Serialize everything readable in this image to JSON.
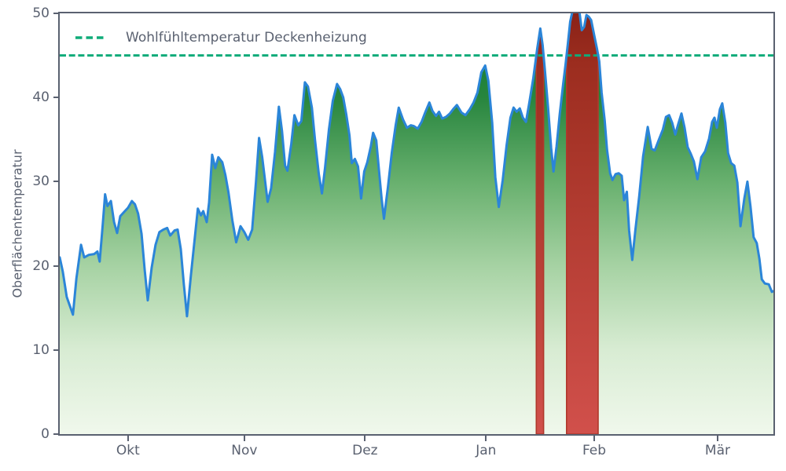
{
  "chart_data": {
    "type": "area",
    "title": "",
    "xlabel": "",
    "ylabel": "Oberflächentemperatur",
    "ylim": [
      0,
      50
    ],
    "xlim_days": [
      0,
      184
    ],
    "grid": false,
    "y_ticks": [
      0,
      10,
      20,
      30,
      40,
      50
    ],
    "x_ticks": [
      {
        "label": "Okt",
        "day": 17.6
      },
      {
        "label": "Nov",
        "day": 47.6
      },
      {
        "label": "Dez",
        "day": 78.7
      },
      {
        "label": "Jan",
        "day": 109.9
      },
      {
        "label": "Feb",
        "day": 137.8
      },
      {
        "label": "Mär",
        "day": 169.6
      }
    ],
    "legend": {
      "position": "upper left",
      "entries": [
        "Wohlfühltemperatur Deckenheizung"
      ]
    },
    "threshold_line": {
      "value": 45,
      "label": "Wohlfühltemperatur Deckenheizung",
      "color": "#0fab79",
      "style": "dashed"
    },
    "colors": {
      "line": "#2b85d8",
      "area_gradient_top": "#0d7a30",
      "area_gradient_bottom": "#f0f8ec",
      "exceed_gradient_top": "#8a2217",
      "exceed_gradient_bottom": "#d1504b",
      "exceed_edge": "#b0392c",
      "axis": "#5a6170"
    },
    "exceedance_fill": {
      "condition": "temperature > 45",
      "description": "area under curve shaded dark red where curve exceeds comfort threshold"
    },
    "series": [
      {
        "name": "Oberflächentemperatur",
        "points": [
          [
            0,
            21
          ],
          [
            0.8,
            19.3
          ],
          [
            1.8,
            16.3
          ],
          [
            3.4,
            14.2
          ],
          [
            4.3,
            18.5
          ],
          [
            5.5,
            22.5
          ],
          [
            6.3,
            21
          ],
          [
            7.5,
            21.3
          ],
          [
            8.9,
            21.4
          ],
          [
            9.7,
            21.7
          ],
          [
            10.3,
            20.5
          ],
          [
            11.1,
            25
          ],
          [
            11.7,
            28.5
          ],
          [
            12.3,
            27.1
          ],
          [
            13.2,
            27.7
          ],
          [
            14,
            25.2
          ],
          [
            14.8,
            23.9
          ],
          [
            15.6,
            25.9
          ],
          [
            16.6,
            26.4
          ],
          [
            17.6,
            26.9
          ],
          [
            18.6,
            27.7
          ],
          [
            19.4,
            27.3
          ],
          [
            20.2,
            26.2
          ],
          [
            21.1,
            23.8
          ],
          [
            21.9,
            19.5
          ],
          [
            22.7,
            15.9
          ],
          [
            23.7,
            19.8
          ],
          [
            24.7,
            22.5
          ],
          [
            25.7,
            24
          ],
          [
            26.7,
            24.3
          ],
          [
            27.7,
            24.5
          ],
          [
            28.5,
            23.6
          ],
          [
            29.6,
            24.2
          ],
          [
            30.4,
            24.3
          ],
          [
            31.2,
            22
          ],
          [
            32,
            17.8
          ],
          [
            32.8,
            14
          ],
          [
            33.8,
            18.8
          ],
          [
            34.8,
            23.2
          ],
          [
            35.6,
            26.8
          ],
          [
            36.4,
            26
          ],
          [
            37,
            26.5
          ],
          [
            37.9,
            25.2
          ],
          [
            38.5,
            27.5
          ],
          [
            39.3,
            33.2
          ],
          [
            40.1,
            31.6
          ],
          [
            40.9,
            32.9
          ],
          [
            41.9,
            32.3
          ],
          [
            42.7,
            30.8
          ],
          [
            43.5,
            28.7
          ],
          [
            44.5,
            25.4
          ],
          [
            45.5,
            22.8
          ],
          [
            46.6,
            24.7
          ],
          [
            47.6,
            24
          ],
          [
            48.6,
            23.1
          ],
          [
            49.6,
            24.3
          ],
          [
            50.6,
            30
          ],
          [
            51.4,
            35.2
          ],
          [
            52.2,
            32.9
          ],
          [
            53,
            29.9
          ],
          [
            53.6,
            27.6
          ],
          [
            54.5,
            29.2
          ],
          [
            55.5,
            33.5
          ],
          [
            56.5,
            38.9
          ],
          [
            57.3,
            36
          ],
          [
            58.1,
            31.9
          ],
          [
            58.7,
            31.3
          ],
          [
            59.7,
            34.5
          ],
          [
            60.5,
            37.9
          ],
          [
            61.5,
            36.7
          ],
          [
            62.3,
            37.2
          ],
          [
            63.2,
            41.8
          ],
          [
            64,
            41.3
          ],
          [
            65,
            38.8
          ],
          [
            65.8,
            35
          ],
          [
            66.8,
            30.9
          ],
          [
            67.6,
            28.6
          ],
          [
            68.4,
            31.6
          ],
          [
            69.4,
            36.2
          ],
          [
            70.4,
            39.6
          ],
          [
            71.5,
            41.6
          ],
          [
            72.3,
            41
          ],
          [
            73.1,
            40
          ],
          [
            73.9,
            37.9
          ],
          [
            74.7,
            35.5
          ],
          [
            75.3,
            32.2
          ],
          [
            76.1,
            32.7
          ],
          [
            76.9,
            31.8
          ],
          [
            77.7,
            28
          ],
          [
            78.5,
            31.2
          ],
          [
            79.3,
            32.3
          ],
          [
            80.2,
            34.2
          ],
          [
            80.8,
            35.8
          ],
          [
            81.6,
            34.9
          ],
          [
            82.4,
            30.9
          ],
          [
            83,
            27.9
          ],
          [
            83.6,
            25.6
          ],
          [
            84.6,
            29.3
          ],
          [
            85.6,
            33.4
          ],
          [
            86.6,
            36.7
          ],
          [
            87.4,
            38.8
          ],
          [
            88.5,
            37.4
          ],
          [
            89.5,
            36.4
          ],
          [
            90.5,
            36.7
          ],
          [
            91.3,
            36.6
          ],
          [
            92.3,
            36.3
          ],
          [
            93.3,
            37.1
          ],
          [
            94.3,
            38.3
          ],
          [
            95.3,
            39.4
          ],
          [
            96.1,
            38.4
          ],
          [
            97,
            37.8
          ],
          [
            97.8,
            38.3
          ],
          [
            98.6,
            37.5
          ],
          [
            99.6,
            37.7
          ],
          [
            100.6,
            38.1
          ],
          [
            101.6,
            38.7
          ],
          [
            102.4,
            39.1
          ],
          [
            103.6,
            38.2
          ],
          [
            104.6,
            37.9
          ],
          [
            105.7,
            38.6
          ],
          [
            106.7,
            39.4
          ],
          [
            107.7,
            40.6
          ],
          [
            108.7,
            43
          ],
          [
            109.7,
            43.8
          ],
          [
            110.5,
            42
          ],
          [
            111.5,
            37
          ],
          [
            112.3,
            30.5
          ],
          [
            113.2,
            27
          ],
          [
            114.2,
            30.2
          ],
          [
            115.2,
            34.3
          ],
          [
            116.2,
            37.6
          ],
          [
            117,
            38.8
          ],
          [
            117.8,
            38.3
          ],
          [
            118.6,
            38.7
          ],
          [
            119.4,
            37.6
          ],
          [
            120.2,
            37.1
          ],
          [
            121,
            39.2
          ],
          [
            122.1,
            42.3
          ],
          [
            123.1,
            45.8
          ],
          [
            123.9,
            48.2
          ],
          [
            124.5,
            46.2
          ],
          [
            125.1,
            43.2
          ],
          [
            125.9,
            38.8
          ],
          [
            126.7,
            34
          ],
          [
            127.3,
            31.2
          ],
          [
            128.1,
            34.2
          ],
          [
            128.9,
            38
          ],
          [
            129.8,
            41.6
          ],
          [
            130.4,
            43.9
          ],
          [
            131,
            46.4
          ],
          [
            131.6,
            49
          ],
          [
            132.2,
            50.3
          ],
          [
            132.8,
            50.8
          ],
          [
            133.4,
            50.9
          ],
          [
            134,
            50.1
          ],
          [
            134.6,
            48
          ],
          [
            135.2,
            48.4
          ],
          [
            135.8,
            49.8
          ],
          [
            136.4,
            49.6
          ],
          [
            137,
            49.2
          ],
          [
            137.8,
            47.4
          ],
          [
            138.5,
            45.8
          ],
          [
            139.1,
            44.3
          ],
          [
            139.7,
            40.6
          ],
          [
            140.5,
            37.3
          ],
          [
            141.1,
            33.8
          ],
          [
            141.9,
            31
          ],
          [
            142.5,
            30.2
          ],
          [
            143.3,
            30.9
          ],
          [
            144.1,
            31
          ],
          [
            144.9,
            30.7
          ],
          [
            145.5,
            27.8
          ],
          [
            146.2,
            28.8
          ],
          [
            146.8,
            24.2
          ],
          [
            147.6,
            20.7
          ],
          [
            148.4,
            24.2
          ],
          [
            149.4,
            28.3
          ],
          [
            150.4,
            33
          ],
          [
            151.6,
            36.5
          ],
          [
            152.6,
            33.9
          ],
          [
            153.4,
            33.7
          ],
          [
            154.4,
            34.9
          ],
          [
            155.5,
            36.2
          ],
          [
            156.3,
            37.7
          ],
          [
            157.1,
            37.9
          ],
          [
            157.9,
            37
          ],
          [
            158.7,
            35.6
          ],
          [
            159.5,
            36.9
          ],
          [
            160.3,
            38.1
          ],
          [
            161.1,
            36.4
          ],
          [
            161.9,
            34.1
          ],
          [
            162.7,
            33.3
          ],
          [
            163.5,
            32.4
          ],
          [
            164.4,
            30.3
          ],
          [
            165.4,
            32.9
          ],
          [
            166.4,
            33.6
          ],
          [
            167.4,
            35.1
          ],
          [
            168.2,
            37.1
          ],
          [
            168.8,
            37.6
          ],
          [
            169.4,
            36.4
          ],
          [
            170.2,
            38.6
          ],
          [
            170.8,
            39.3
          ],
          [
            171.6,
            37
          ],
          [
            172.3,
            33.4
          ],
          [
            173.1,
            32.2
          ],
          [
            173.9,
            31.9
          ],
          [
            174.7,
            29.9
          ],
          [
            175.5,
            24.7
          ],
          [
            176.5,
            28
          ],
          [
            177.3,
            30
          ],
          [
            178.1,
            27
          ],
          [
            178.9,
            23.4
          ],
          [
            179.7,
            22.7
          ],
          [
            180.4,
            20.8
          ],
          [
            181,
            18.4
          ],
          [
            181.8,
            17.9
          ],
          [
            182.8,
            17.8
          ],
          [
            183.6,
            16.9
          ],
          [
            184,
            17
          ]
        ]
      }
    ]
  }
}
